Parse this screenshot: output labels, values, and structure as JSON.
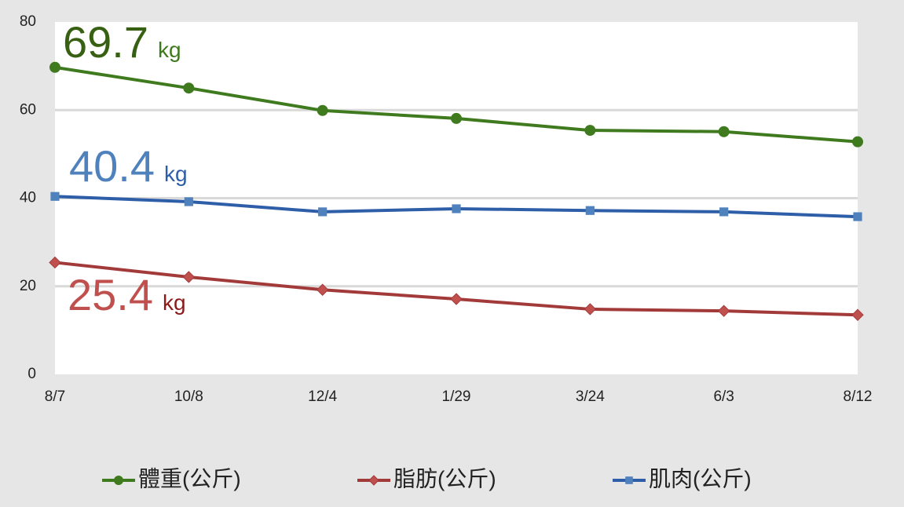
{
  "chart_data": {
    "type": "line",
    "categories": [
      "8/7",
      "10/8",
      "12/4",
      "1/29",
      "3/24",
      "6/3",
      "8/12"
    ],
    "series": [
      {
        "name": "體重(公斤)",
        "color": "#3f7a1e",
        "marker": "circle",
        "marker_color": "#3f7a1e",
        "values": [
          69.7,
          65.0,
          59.9,
          58.1,
          55.4,
          55.1,
          52.8
        ]
      },
      {
        "name": "脂肪(公斤)",
        "color": "#a33a3a",
        "marker": "diamond",
        "marker_color": "#c0504d",
        "values": [
          25.4,
          22.1,
          19.2,
          17.1,
          14.8,
          14.4,
          13.5
        ]
      },
      {
        "name": "肌肉(公斤)",
        "color": "#2e5ea8",
        "marker": "square",
        "marker_color": "#4f81bd",
        "values": [
          40.4,
          39.2,
          36.9,
          37.6,
          37.2,
          36.9,
          35.8
        ]
      }
    ],
    "annotations": [
      {
        "text": "69.7",
        "unit": "kg",
        "color": "#376013",
        "unit_color": "#3f7a1e"
      },
      {
        "text": "40.4",
        "unit": "kg",
        "color": "#4f81bd",
        "unit_color": "#2e5ea8"
      },
      {
        "text": "25.4",
        "unit": "kg",
        "color": "#c0504d",
        "unit_color": "#8b1a1a"
      }
    ],
    "ylim": [
      0,
      80
    ],
    "yticks": [
      0,
      20,
      40,
      60,
      80
    ],
    "grid": true,
    "legend": "bottom"
  }
}
